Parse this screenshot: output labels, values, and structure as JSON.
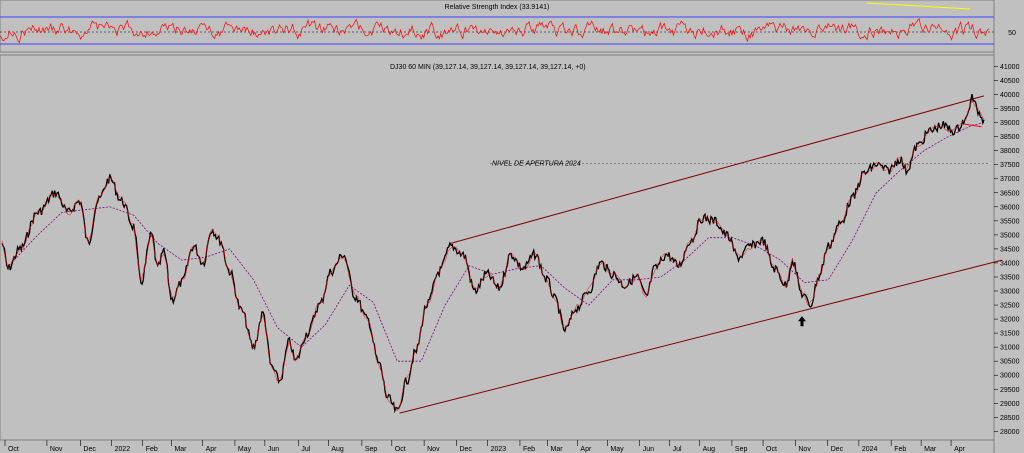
{
  "chart_data": {
    "type": "line",
    "rsi": {
      "title": "Relative Strength Index (33.9141)",
      "level_label": "50",
      "colors": {
        "line": "#ff0000",
        "bands": "#4040ff",
        "mid": "#000000",
        "divergence": "#ffff00"
      }
    },
    "price": {
      "legend": "DJ30 60 MIN (39,127.14, 39,127.14, 39,127.14, 39,127.14, +0)",
      "annotation": "NIVEL DE APERTURA 2024",
      "annotation_level": 37550,
      "ylim": [
        27800,
        41300
      ],
      "y_ticks": [
        28000,
        28500,
        29000,
        29500,
        30000,
        30500,
        31000,
        31500,
        32000,
        32500,
        33000,
        33500,
        34000,
        34500,
        35000,
        35500,
        36000,
        36500,
        37000,
        37500,
        38000,
        38500,
        39000,
        39500,
        40000,
        40500,
        41000
      ],
      "colors": {
        "price": "#000000",
        "ma": "#800080",
        "channel": "#800000",
        "arrow": "#000000"
      },
      "series": [
        {
          "t": 0,
          "v": 34700
        },
        {
          "t": 0.5,
          "v": 33800
        },
        {
          "t": 1.5,
          "v": 34500
        },
        {
          "t": 3,
          "v": 35800
        },
        {
          "t": 4.5,
          "v": 36500
        },
        {
          "t": 5.5,
          "v": 35800
        },
        {
          "t": 6.5,
          "v": 36200
        },
        {
          "t": 7.2,
          "v": 34700
        },
        {
          "t": 8,
          "v": 36200
        },
        {
          "t": 9,
          "v": 37000
        },
        {
          "t": 10,
          "v": 36200
        },
        {
          "t": 11,
          "v": 35300
        },
        {
          "t": 11.6,
          "v": 33300
        },
        {
          "t": 12.5,
          "v": 35000
        },
        {
          "t": 13,
          "v": 33800
        },
        {
          "t": 13.5,
          "v": 34400
        },
        {
          "t": 14.2,
          "v": 32700
        },
        {
          "t": 15,
          "v": 33300
        },
        {
          "t": 16,
          "v": 34600
        },
        {
          "t": 16.8,
          "v": 34000
        },
        {
          "t": 17.5,
          "v": 35200
        },
        {
          "t": 18.2,
          "v": 34800
        },
        {
          "t": 19,
          "v": 33700
        },
        {
          "t": 20,
          "v": 32300
        },
        {
          "t": 21,
          "v": 31000
        },
        {
          "t": 21.8,
          "v": 32200
        },
        {
          "t": 22.5,
          "v": 30300
        },
        {
          "t": 23.2,
          "v": 29800
        },
        {
          "t": 24,
          "v": 31200
        },
        {
          "t": 24.5,
          "v": 30500
        },
        {
          "t": 25.5,
          "v": 31500
        },
        {
          "t": 26.5,
          "v": 32500
        },
        {
          "t": 27.5,
          "v": 33700
        },
        {
          "t": 28.5,
          "v": 34300
        },
        {
          "t": 29.5,
          "v": 32800
        },
        {
          "t": 30.5,
          "v": 32000
        },
        {
          "t": 31.5,
          "v": 30400
        },
        {
          "t": 32.2,
          "v": 29200
        },
        {
          "t": 33,
          "v": 28700
        },
        {
          "t": 33.8,
          "v": 29800
        },
        {
          "t": 34.5,
          "v": 30800
        },
        {
          "t": 35.5,
          "v": 32500
        },
        {
          "t": 36.5,
          "v": 33700
        },
        {
          "t": 37.5,
          "v": 34600
        },
        {
          "t": 38.5,
          "v": 34300
        },
        {
          "t": 39.5,
          "v": 33000
        },
        {
          "t": 40.5,
          "v": 33600
        },
        {
          "t": 41.5,
          "v": 33100
        },
        {
          "t": 42.5,
          "v": 34300
        },
        {
          "t": 43.5,
          "v": 33800
        },
        {
          "t": 44.5,
          "v": 34300
        },
        {
          "t": 45.5,
          "v": 33400
        },
        {
          "t": 46.2,
          "v": 32700
        },
        {
          "t": 47,
          "v": 31600
        },
        {
          "t": 48,
          "v": 32400
        },
        {
          "t": 49,
          "v": 33000
        },
        {
          "t": 50,
          "v": 34000
        },
        {
          "t": 51,
          "v": 33600
        },
        {
          "t": 52,
          "v": 33200
        },
        {
          "t": 53,
          "v": 33500
        },
        {
          "t": 53.8,
          "v": 32800
        },
        {
          "t": 54.5,
          "v": 33800
        },
        {
          "t": 55.5,
          "v": 34300
        },
        {
          "t": 56.5,
          "v": 33900
        },
        {
          "t": 57.5,
          "v": 34800
        },
        {
          "t": 58.5,
          "v": 35600
        },
        {
          "t": 59.5,
          "v": 35500
        },
        {
          "t": 60.5,
          "v": 35000
        },
        {
          "t": 61.5,
          "v": 34200
        },
        {
          "t": 62.5,
          "v": 34600
        },
        {
          "t": 63.5,
          "v": 34800
        },
        {
          "t": 64.5,
          "v": 33800
        },
        {
          "t": 65.5,
          "v": 33200
        },
        {
          "t": 66,
          "v": 34100
        },
        {
          "t": 66.8,
          "v": 32900
        },
        {
          "t": 67.5,
          "v": 32500
        },
        {
          "t": 68.2,
          "v": 33500
        },
        {
          "t": 69,
          "v": 34600
        },
        {
          "t": 70,
          "v": 35400
        },
        {
          "t": 71,
          "v": 36300
        },
        {
          "t": 72,
          "v": 37200
        },
        {
          "t": 73,
          "v": 37500
        },
        {
          "t": 74,
          "v": 37300
        },
        {
          "t": 75,
          "v": 37700
        },
        {
          "t": 75.5,
          "v": 37300
        },
        {
          "t": 76.5,
          "v": 38200
        },
        {
          "t": 77.5,
          "v": 38700
        },
        {
          "t": 78.5,
          "v": 38900
        },
        {
          "t": 79.5,
          "v": 38700
        },
        {
          "t": 80.5,
          "v": 39100
        },
        {
          "t": 81,
          "v": 39900
        },
        {
          "t": 81.5,
          "v": 39400
        },
        {
          "t": 82,
          "v": 39100
        }
      ],
      "ma_series": [
        {
          "t": 1,
          "v": 34100
        },
        {
          "t": 3,
          "v": 35000
        },
        {
          "t": 5,
          "v": 35800
        },
        {
          "t": 7,
          "v": 35900
        },
        {
          "t": 9,
          "v": 36000
        },
        {
          "t": 11,
          "v": 35700
        },
        {
          "t": 13,
          "v": 34700
        },
        {
          "t": 15,
          "v": 34100
        },
        {
          "t": 17,
          "v": 34200
        },
        {
          "t": 19,
          "v": 34500
        },
        {
          "t": 21,
          "v": 33400
        },
        {
          "t": 23,
          "v": 31700
        },
        {
          "t": 25,
          "v": 31000
        },
        {
          "t": 27,
          "v": 31800
        },
        {
          "t": 29,
          "v": 33200
        },
        {
          "t": 31,
          "v": 32600
        },
        {
          "t": 33,
          "v": 30500
        },
        {
          "t": 35,
          "v": 30500
        },
        {
          "t": 37,
          "v": 32500
        },
        {
          "t": 39,
          "v": 33900
        },
        {
          "t": 41,
          "v": 33600
        },
        {
          "t": 43,
          "v": 33800
        },
        {
          "t": 45,
          "v": 33900
        },
        {
          "t": 47,
          "v": 33100
        },
        {
          "t": 49,
          "v": 32500
        },
        {
          "t": 51,
          "v": 33400
        },
        {
          "t": 53,
          "v": 33400
        },
        {
          "t": 55,
          "v": 33500
        },
        {
          "t": 57,
          "v": 34100
        },
        {
          "t": 59,
          "v": 34900
        },
        {
          "t": 61,
          "v": 34900
        },
        {
          "t": 63,
          "v": 34600
        },
        {
          "t": 65,
          "v": 34100
        },
        {
          "t": 67,
          "v": 33300
        },
        {
          "t": 69,
          "v": 33400
        },
        {
          "t": 71,
          "v": 34800
        },
        {
          "t": 73,
          "v": 36500
        },
        {
          "t": 75,
          "v": 37300
        },
        {
          "t": 77,
          "v": 38000
        },
        {
          "t": 79,
          "v": 38500
        },
        {
          "t": 81,
          "v": 38900
        },
        {
          "t": 82,
          "v": 39000
        }
      ],
      "channel_upper": [
        {
          "t": 37.5,
          "v": 34700
        },
        {
          "t": 82,
          "v": 39950
        }
      ],
      "channel_lower": [
        {
          "t": 33.2,
          "v": 28650
        },
        {
          "t": 83.5,
          "v": 34100
        }
      ],
      "resistance_short": [
        {
          "t": 80.3,
          "v": 38950
        },
        {
          "t": 81.8,
          "v": 38850
        }
      ],
      "arrow_at": {
        "t": 66.8,
        "v": 32100
      }
    },
    "x_ticks": [
      {
        "label": "Oct",
        "t": 0.5
      },
      {
        "label": "Nov",
        "t": 4
      },
      {
        "label": "Dec",
        "t": 6.8
      },
      {
        "label": "2022",
        "t": 9.4
      },
      {
        "label": "Feb",
        "t": 12
      },
      {
        "label": "Mar",
        "t": 14.4
      },
      {
        "label": "Apr",
        "t": 17
      },
      {
        "label": "May",
        "t": 19.7
      },
      {
        "label": "Jun",
        "t": 22.2
      },
      {
        "label": "Jul",
        "t": 25
      },
      {
        "label": "Aug",
        "t": 27.5
      },
      {
        "label": "Sep",
        "t": 30.3
      },
      {
        "label": "Oct",
        "t": 32.8
      },
      {
        "label": "Nov",
        "t": 35.5
      },
      {
        "label": "Dec",
        "t": 38.2
      },
      {
        "label": "2023",
        "t": 40.8
      },
      {
        "label": "Feb",
        "t": 43.5
      },
      {
        "label": "Mar",
        "t": 45.8
      },
      {
        "label": "Apr",
        "t": 48.3
      },
      {
        "label": "May",
        "t": 50.8
      },
      {
        "label": "Jun",
        "t": 53.5
      },
      {
        "label": "Jul",
        "t": 56
      },
      {
        "label": "Aug",
        "t": 58.5
      },
      {
        "label": "Sep",
        "t": 61.2
      },
      {
        "label": "Oct",
        "t": 63.8
      },
      {
        "label": "Nov",
        "t": 66.5
      },
      {
        "label": "Dec",
        "t": 69.2
      },
      {
        "label": "2024",
        "t": 71.8
      },
      {
        "label": "Feb",
        "t": 74.5
      },
      {
        "label": "Mar",
        "t": 77
      },
      {
        "label": "Apr",
        "t": 79.5
      }
    ]
  }
}
